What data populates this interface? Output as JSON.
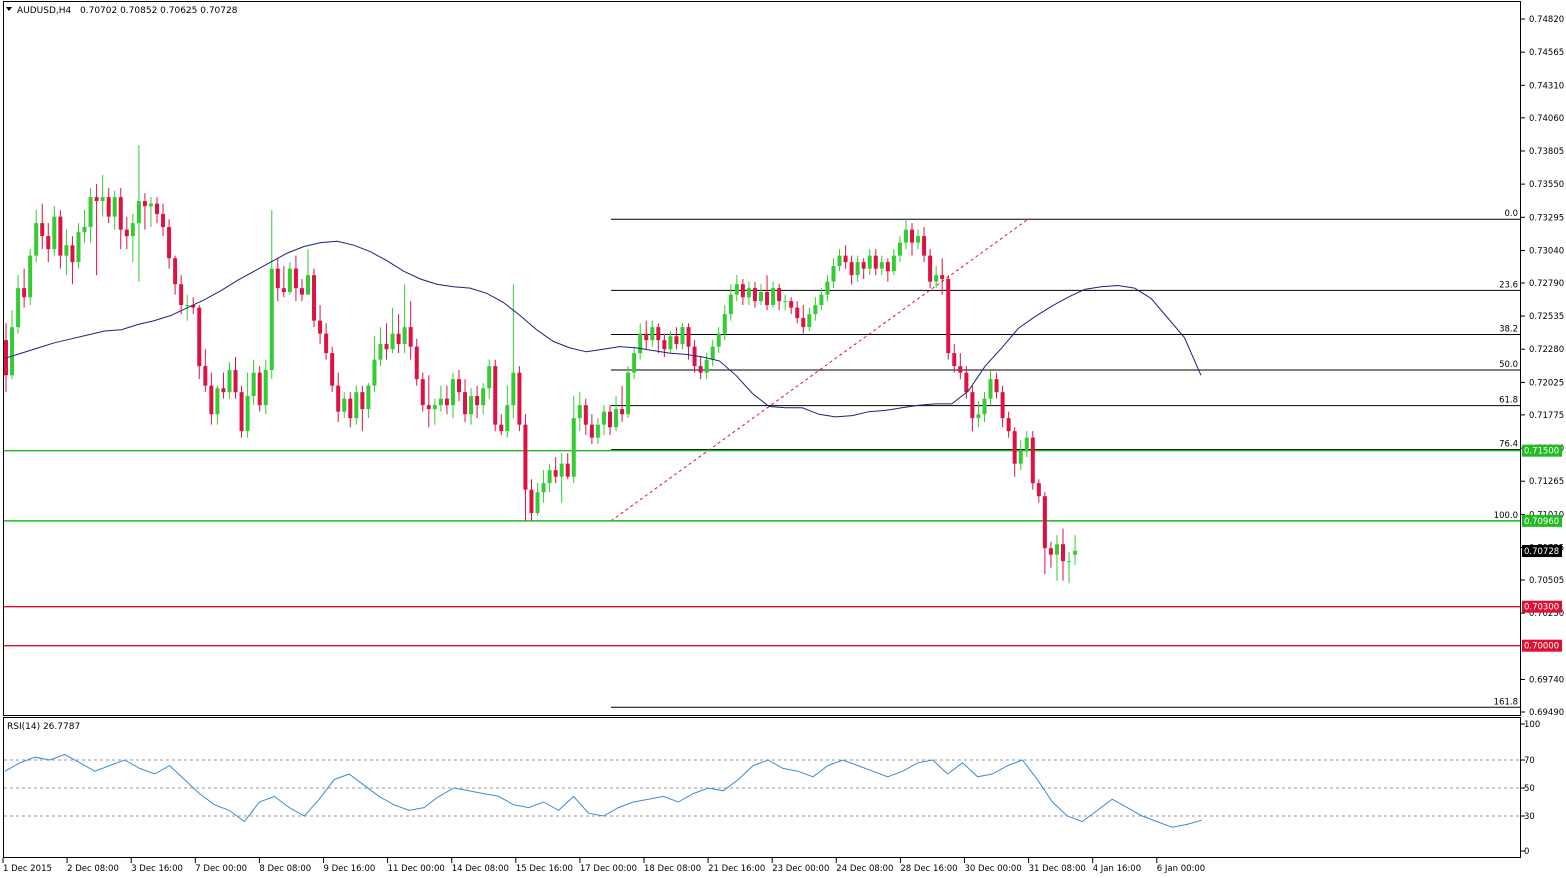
{
  "header": {
    "symbol_label": "AUDUSD,H4",
    "ohlc": "0.70702 0.70852 0.70625 0.70728"
  },
  "rsi": {
    "label": "RSI(14) 26.7787",
    "levels": [
      "100",
      "70",
      "50",
      "30",
      "0"
    ]
  },
  "price_axis": {
    "ticks": [
      "0.74820",
      "0.74565",
      "0.74310",
      "0.74060",
      "0.73805",
      "0.73550",
      "0.73295",
      "0.73040",
      "0.72790",
      "0.72535",
      "0.72280",
      "0.72025",
      "0.71775",
      "0.71520",
      "0.71265",
      "0.71010",
      "0.70755",
      "0.70505",
      "0.70250",
      "0.69740",
      "0.69490"
    ],
    "badges": [
      {
        "label": "0.71500",
        "color": "#22bb22"
      },
      {
        "label": "0.70960",
        "color": "#22bb22"
      },
      {
        "label": "0.70728",
        "color": "#000000"
      },
      {
        "label": "0.70300",
        "color": "#dd1133"
      },
      {
        "label": "0.70000",
        "color": "#dd1133"
      }
    ]
  },
  "fibonacci": {
    "levels": [
      "0.0",
      "23.6",
      "38.2",
      "50.0",
      "61.8",
      "76.4",
      "100.0",
      "161.8"
    ]
  },
  "time_axis": {
    "labels": [
      "1 Dec 2015",
      "2 Dec 08:00",
      "3 Dec 16:00",
      "7 Dec 00:00",
      "8 Dec 08:00",
      "9 Dec 16:00",
      "11 Dec 00:00",
      "14 Dec 08:00",
      "15 Dec 16:00",
      "17 Dec 00:00",
      "18 Dec 08:00",
      "21 Dec 16:00",
      "23 Dec 00:00",
      "24 Dec 08:00",
      "28 Dec 16:00",
      "30 Dec 00:00",
      "31 Dec 08:00",
      "4 Jan 16:00",
      "6 Jan 00:00"
    ]
  },
  "colors": {
    "bull": "#33cc33",
    "bear": "#dd1144",
    "ma": "#1a237e",
    "rsi": "#3b8bd6",
    "support": "#22bb22",
    "resistance": "#dd1133"
  },
  "chart_data": {
    "type": "candlestick",
    "symbol": "AUDUSD",
    "timeframe": "H4",
    "ylim": [
      0.6949,
      0.7482
    ],
    "horizontal_lines": [
      {
        "value": 0.715,
        "color": "#22bb22"
      },
      {
        "value": 0.7096,
        "color": "#22bb22"
      },
      {
        "value": 0.703,
        "color": "#dd1133"
      },
      {
        "value": 0.7,
        "color": "#dd1133"
      }
    ],
    "fibonacci": {
      "high": 0.7328,
      "low": 0.7096
    },
    "moving_average_points": [
      0.7221,
      0.7225,
      0.7229,
      0.7233,
      0.7236,
      0.7239,
      0.7242,
      0.7243,
      0.7247,
      0.725,
      0.7254,
      0.726,
      0.7266,
      0.7273,
      0.7281,
      0.7288,
      0.7295,
      0.7302,
      0.7307,
      0.731,
      0.7311,
      0.7308,
      0.7303,
      0.7296,
      0.7288,
      0.7282,
      0.7278,
      0.7276,
      0.7275,
      0.7271,
      0.7264,
      0.7254,
      0.7243,
      0.7234,
      0.7229,
      0.7226,
      0.7228,
      0.723,
      0.7229,
      0.7227,
      0.7225,
      0.7224,
      0.7222,
      0.7219,
      0.7208,
      0.7194,
      0.7184,
      0.7183,
      0.7183,
      0.7178,
      0.7176,
      0.7177,
      0.718,
      0.7181,
      0.7183,
      0.7185,
      0.7186,
      0.7186,
      0.7196,
      0.7215,
      0.7229,
      0.7244,
      0.7253,
      0.7261,
      0.7268,
      0.7274,
      0.7276,
      0.7277,
      0.7275,
      0.7267,
      0.7252,
      0.7237,
      0.7208
    ],
    "rsi_points": [
      62,
      68,
      72,
      70,
      74,
      68,
      62,
      66,
      70,
      64,
      60,
      66,
      56,
      46,
      38,
      34,
      26,
      40,
      44,
      36,
      30,
      42,
      56,
      60,
      52,
      44,
      38,
      34,
      36,
      44,
      50,
      48,
      46,
      44,
      38,
      36,
      40,
      34,
      44,
      32,
      30,
      36,
      40,
      42,
      44,
      40,
      46,
      50,
      48,
      56,
      66,
      70,
      64,
      62,
      58,
      66,
      70,
      66,
      62,
      58,
      62,
      68,
      70,
      60,
      68,
      58,
      60,
      66,
      70,
      56,
      40,
      30,
      26,
      34,
      42,
      36,
      30,
      26,
      22,
      24,
      27
    ],
    "candles": [
      [
        0.7235,
        0.7208,
        0.7248,
        0.7195
      ],
      [
        0.7208,
        0.7245,
        0.7258,
        0.7205
      ],
      [
        0.7245,
        0.7275,
        0.7285,
        0.724
      ],
      [
        0.7275,
        0.7268,
        0.729,
        0.726
      ],
      [
        0.7268,
        0.73,
        0.7305,
        0.7262
      ],
      [
        0.73,
        0.7325,
        0.7335,
        0.7295
      ],
      [
        0.7325,
        0.7315,
        0.734,
        0.7305
      ],
      [
        0.7315,
        0.7305,
        0.7325,
        0.7295
      ],
      [
        0.7305,
        0.733,
        0.7338,
        0.73
      ],
      [
        0.733,
        0.73,
        0.7335,
        0.729
      ],
      [
        0.73,
        0.7308,
        0.732,
        0.7285
      ],
      [
        0.7308,
        0.7295,
        0.7315,
        0.7278
      ],
      [
        0.7295,
        0.7318,
        0.7325,
        0.729
      ],
      [
        0.7318,
        0.7322,
        0.7335,
        0.731
      ],
      [
        0.7322,
        0.7345,
        0.7352,
        0.731
      ],
      [
        0.7345,
        0.7342,
        0.7355,
        0.7285
      ],
      [
        0.7342,
        0.7345,
        0.7362,
        0.733
      ],
      [
        0.7345,
        0.733,
        0.7352,
        0.7325
      ],
      [
        0.733,
        0.7345,
        0.735,
        0.732
      ],
      [
        0.7345,
        0.732,
        0.7352,
        0.7305
      ],
      [
        0.732,
        0.7315,
        0.733,
        0.7305
      ],
      [
        0.7315,
        0.7325,
        0.7332,
        0.7295
      ],
      [
        0.7325,
        0.7342,
        0.7385,
        0.728
      ],
      [
        0.7342,
        0.7338,
        0.7348,
        0.732
      ],
      [
        0.7338,
        0.734,
        0.7345,
        0.7322
      ],
      [
        0.734,
        0.7332,
        0.7345,
        0.7325
      ],
      [
        0.7332,
        0.7322,
        0.734,
        0.7315
      ],
      [
        0.7322,
        0.7298,
        0.7328,
        0.729
      ],
      [
        0.7298,
        0.7278,
        0.73,
        0.727
      ],
      [
        0.7278,
        0.7262,
        0.7285,
        0.7255
      ],
      [
        0.7262,
        0.7262,
        0.727,
        0.725
      ],
      [
        0.7262,
        0.726,
        0.7268,
        0.7255
      ],
      [
        0.726,
        0.7215,
        0.7262,
        0.7205
      ],
      [
        0.7215,
        0.72,
        0.7228,
        0.7195
      ],
      [
        0.72,
        0.7178,
        0.721,
        0.717
      ],
      [
        0.7178,
        0.7198,
        0.72,
        0.717
      ],
      [
        0.7198,
        0.7195,
        0.721,
        0.719
      ],
      [
        0.7195,
        0.7212,
        0.7218,
        0.719
      ],
      [
        0.7212,
        0.7195,
        0.7222,
        0.719
      ],
      [
        0.7195,
        0.7165,
        0.72,
        0.716
      ],
      [
        0.7165,
        0.7192,
        0.721,
        0.716
      ],
      [
        0.7192,
        0.721,
        0.722,
        0.7185
      ],
      [
        0.721,
        0.7185,
        0.7215,
        0.718
      ],
      [
        0.7185,
        0.7212,
        0.722,
        0.7178
      ],
      [
        0.7212,
        0.729,
        0.7335,
        0.7205
      ],
      [
        0.729,
        0.7275,
        0.7298,
        0.7265
      ],
      [
        0.7275,
        0.7272,
        0.7292,
        0.7268
      ],
      [
        0.7272,
        0.729,
        0.7295,
        0.727
      ],
      [
        0.729,
        0.7275,
        0.73,
        0.7265
      ],
      [
        0.7275,
        0.727,
        0.7282,
        0.7265
      ],
      [
        0.727,
        0.7285,
        0.7305,
        0.727
      ],
      [
        0.7285,
        0.725,
        0.729,
        0.7245
      ],
      [
        0.725,
        0.724,
        0.7262,
        0.7232
      ],
      [
        0.724,
        0.7225,
        0.7248,
        0.722
      ],
      [
        0.7225,
        0.72,
        0.723,
        0.7195
      ],
      [
        0.72,
        0.718,
        0.721,
        0.7172
      ],
      [
        0.718,
        0.719,
        0.7195,
        0.7175
      ],
      [
        0.719,
        0.7175,
        0.7195,
        0.7168
      ],
      [
        0.7175,
        0.7195,
        0.72,
        0.717
      ],
      [
        0.7195,
        0.7182,
        0.72,
        0.7165
      ],
      [
        0.7182,
        0.72,
        0.7202,
        0.7175
      ],
      [
        0.72,
        0.722,
        0.7238,
        0.7195
      ],
      [
        0.722,
        0.7232,
        0.7245,
        0.7215
      ],
      [
        0.7232,
        0.7228,
        0.7248,
        0.722
      ],
      [
        0.7228,
        0.724,
        0.726,
        0.7225
      ],
      [
        0.724,
        0.7232,
        0.7255,
        0.7225
      ],
      [
        0.7232,
        0.7245,
        0.7278,
        0.7225
      ],
      [
        0.7245,
        0.723,
        0.7265,
        0.722
      ],
      [
        0.723,
        0.7205,
        0.7236,
        0.72
      ],
      [
        0.7205,
        0.7185,
        0.721,
        0.718
      ],
      [
        0.7185,
        0.7182,
        0.7208,
        0.7168
      ],
      [
        0.7182,
        0.7185,
        0.719,
        0.717
      ],
      [
        0.7185,
        0.719,
        0.72,
        0.718
      ],
      [
        0.719,
        0.7185,
        0.72,
        0.7178
      ],
      [
        0.7185,
        0.7205,
        0.721,
        0.7175
      ],
      [
        0.7205,
        0.7195,
        0.7212,
        0.7188
      ],
      [
        0.7195,
        0.7178,
        0.7205,
        0.7172
      ],
      [
        0.7178,
        0.7192,
        0.7198,
        0.717
      ],
      [
        0.7192,
        0.7185,
        0.72,
        0.7175
      ],
      [
        0.7185,
        0.7198,
        0.7202,
        0.7178
      ],
      [
        0.7198,
        0.7215,
        0.722,
        0.719
      ],
      [
        0.7215,
        0.717,
        0.722,
        0.7165
      ],
      [
        0.717,
        0.7165,
        0.7178,
        0.7162
      ],
      [
        0.7165,
        0.7185,
        0.72,
        0.716
      ],
      [
        0.7185,
        0.721,
        0.7278,
        0.7175
      ],
      [
        0.721,
        0.717,
        0.7215,
        0.7165
      ],
      [
        0.717,
        0.712,
        0.7178,
        0.7096
      ],
      [
        0.712,
        0.7102,
        0.7128,
        0.7096
      ],
      [
        0.7102,
        0.7118,
        0.7125,
        0.71
      ],
      [
        0.7118,
        0.7125,
        0.7135,
        0.711
      ],
      [
        0.7125,
        0.7135,
        0.714,
        0.7118
      ],
      [
        0.7135,
        0.713,
        0.7145,
        0.7125
      ],
      [
        0.713,
        0.714,
        0.7148,
        0.711
      ],
      [
        0.714,
        0.713,
        0.7148,
        0.7128
      ],
      [
        0.713,
        0.7175,
        0.7192,
        0.7125
      ],
      [
        0.7175,
        0.7185,
        0.7195,
        0.7165
      ],
      [
        0.7185,
        0.717,
        0.719,
        0.7162
      ],
      [
        0.717,
        0.716,
        0.7178,
        0.7155
      ],
      [
        0.716,
        0.717,
        0.7175,
        0.7155
      ],
      [
        0.717,
        0.718,
        0.7185,
        0.7162
      ],
      [
        0.718,
        0.7168,
        0.7185,
        0.7162
      ],
      [
        0.7168,
        0.7182,
        0.7192,
        0.7165
      ],
      [
        0.7182,
        0.7178,
        0.72,
        0.7172
      ],
      [
        0.7178,
        0.721,
        0.7215,
        0.7175
      ],
      [
        0.721,
        0.7225,
        0.723,
        0.7205
      ],
      [
        0.7225,
        0.724,
        0.7248,
        0.722
      ],
      [
        0.724,
        0.7235,
        0.725,
        0.7228
      ],
      [
        0.7235,
        0.7245,
        0.725,
        0.723
      ],
      [
        0.7245,
        0.7235,
        0.7248,
        0.7225
      ],
      [
        0.7235,
        0.7228,
        0.724,
        0.7222
      ],
      [
        0.7228,
        0.7238,
        0.7242,
        0.7225
      ],
      [
        0.7238,
        0.7232,
        0.7245,
        0.7228
      ],
      [
        0.7232,
        0.7245,
        0.7248,
        0.7228
      ],
      [
        0.7245,
        0.723,
        0.7248,
        0.722
      ],
      [
        0.723,
        0.7215,
        0.7235,
        0.721
      ],
      [
        0.7215,
        0.721,
        0.7222,
        0.7205
      ],
      [
        0.721,
        0.722,
        0.7225,
        0.7205
      ],
      [
        0.722,
        0.723,
        0.7235,
        0.7215
      ],
      [
        0.723,
        0.724,
        0.7245,
        0.7225
      ],
      [
        0.724,
        0.7255,
        0.7262,
        0.7235
      ],
      [
        0.7255,
        0.727,
        0.7278,
        0.725
      ],
      [
        0.727,
        0.7278,
        0.7285,
        0.7265
      ],
      [
        0.7278,
        0.7268,
        0.7282,
        0.7262
      ],
      [
        0.7268,
        0.7275,
        0.728,
        0.7262
      ],
      [
        0.7275,
        0.7265,
        0.728,
        0.726
      ],
      [
        0.7265,
        0.7272,
        0.7278,
        0.7262
      ],
      [
        0.7272,
        0.7262,
        0.7285,
        0.7258
      ],
      [
        0.7262,
        0.7275,
        0.728,
        0.726
      ],
      [
        0.7275,
        0.7265,
        0.7278,
        0.7258
      ],
      [
        0.7265,
        0.7265,
        0.727,
        0.7258
      ],
      [
        0.7265,
        0.726,
        0.7268,
        0.7255
      ],
      [
        0.726,
        0.7252,
        0.7265,
        0.7248
      ],
      [
        0.7252,
        0.7245,
        0.7262,
        0.724
      ],
      [
        0.7245,
        0.7255,
        0.726,
        0.7242
      ],
      [
        0.7255,
        0.7262,
        0.7268,
        0.725
      ],
      [
        0.7262,
        0.727,
        0.7275,
        0.7258
      ],
      [
        0.727,
        0.728,
        0.7285,
        0.7265
      ],
      [
        0.728,
        0.7292,
        0.7298,
        0.7275
      ],
      [
        0.7292,
        0.73,
        0.7305,
        0.7288
      ],
      [
        0.73,
        0.7295,
        0.7308,
        0.729
      ],
      [
        0.7295,
        0.7285,
        0.73,
        0.7278
      ],
      [
        0.7285,
        0.7295,
        0.73,
        0.728
      ],
      [
        0.7295,
        0.729,
        0.7298,
        0.7282
      ],
      [
        0.729,
        0.73,
        0.7305,
        0.7285
      ],
      [
        0.73,
        0.729,
        0.7305,
        0.7285
      ],
      [
        0.729,
        0.7295,
        0.73,
        0.7285
      ],
      [
        0.7295,
        0.7288,
        0.7298,
        0.728
      ],
      [
        0.7288,
        0.73,
        0.7305,
        0.7285
      ],
      [
        0.73,
        0.731,
        0.7315,
        0.7295
      ],
      [
        0.731,
        0.732,
        0.7328,
        0.7305
      ],
      [
        0.732,
        0.731,
        0.7325,
        0.73
      ],
      [
        0.731,
        0.7315,
        0.732,
        0.7305
      ],
      [
        0.7315,
        0.73,
        0.7322,
        0.7295
      ],
      [
        0.73,
        0.728,
        0.7305,
        0.7275
      ],
      [
        0.728,
        0.7285,
        0.7292,
        0.7275
      ],
      [
        0.7285,
        0.7282,
        0.7298,
        0.727
      ],
      [
        0.7282,
        0.7225,
        0.7285,
        0.722
      ],
      [
        0.7225,
        0.7215,
        0.7232,
        0.721
      ],
      [
        0.7215,
        0.721,
        0.7225,
        0.7205
      ],
      [
        0.721,
        0.7195,
        0.7215,
        0.719
      ],
      [
        0.7195,
        0.7175,
        0.72,
        0.7165
      ],
      [
        0.7175,
        0.7178,
        0.7188,
        0.7168
      ],
      [
        0.7178,
        0.719,
        0.7195,
        0.7172
      ],
      [
        0.719,
        0.7205,
        0.7212,
        0.7185
      ],
      [
        0.7205,
        0.7195,
        0.721,
        0.719
      ],
      [
        0.7195,
        0.7175,
        0.72,
        0.7168
      ],
      [
        0.7175,
        0.7165,
        0.718,
        0.716
      ],
      [
        0.7165,
        0.714,
        0.7168,
        0.713
      ],
      [
        0.714,
        0.715,
        0.7158,
        0.7135
      ],
      [
        0.715,
        0.716,
        0.7165,
        0.7145
      ],
      [
        0.716,
        0.7125,
        0.7165,
        0.712
      ],
      [
        0.7125,
        0.7115,
        0.7128,
        0.711
      ],
      [
        0.7115,
        0.7075,
        0.7118,
        0.7055
      ],
      [
        0.7075,
        0.707,
        0.708,
        0.706
      ],
      [
        0.707,
        0.7078,
        0.7085,
        0.705
      ],
      [
        0.7078,
        0.7065,
        0.709,
        0.705
      ],
      [
        0.7065,
        0.7065,
        0.7072,
        0.7048
      ],
      [
        0.707,
        0.7073,
        0.7085,
        0.7062
      ]
    ]
  }
}
